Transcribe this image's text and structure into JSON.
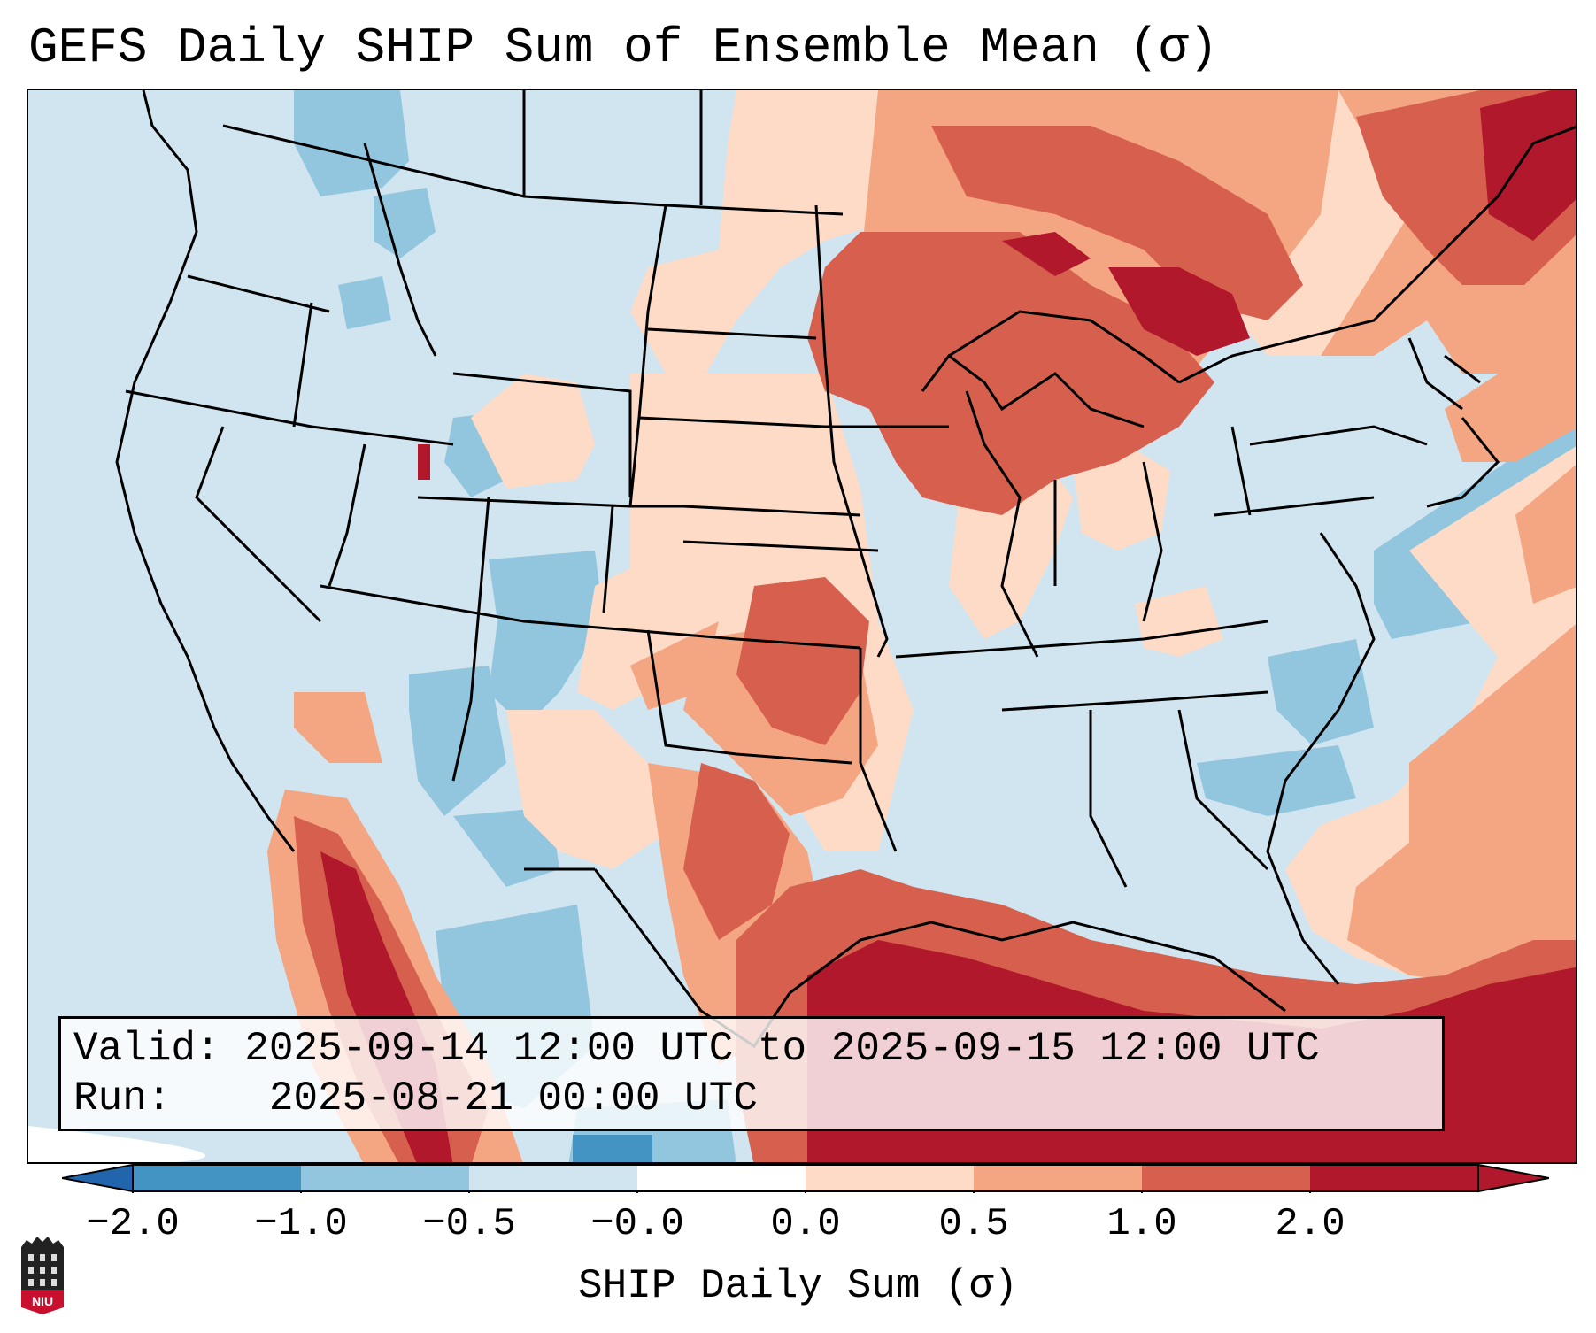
{
  "title": "GEFS Daily SHIP Sum of Ensemble Mean (σ)",
  "info": {
    "valid_label": "Valid:",
    "valid_value": "2025-09-14 12:00 UTC to 2025-09-15 12:00 UTC",
    "run_label": "Run:",
    "run_value": "2025-08-21 00:00 UTC"
  },
  "colorbar": {
    "label": "SHIP Daily Sum (σ)",
    "ticks": [
      "−2.0",
      "−1.0",
      "−0.5",
      "−0.0",
      "0.0",
      "0.5",
      "1.0",
      "2.0"
    ],
    "colors": [
      "#4393c3",
      "#92c5de",
      "#d1e5f0",
      "#ffffff",
      "#fddbc7",
      "#f4a582",
      "#d6604d",
      "#b2182b"
    ],
    "extend_low_color": "#2166ac",
    "extend_high_color": "#b2182b"
  },
  "logo": {
    "text": "NIU"
  }
}
